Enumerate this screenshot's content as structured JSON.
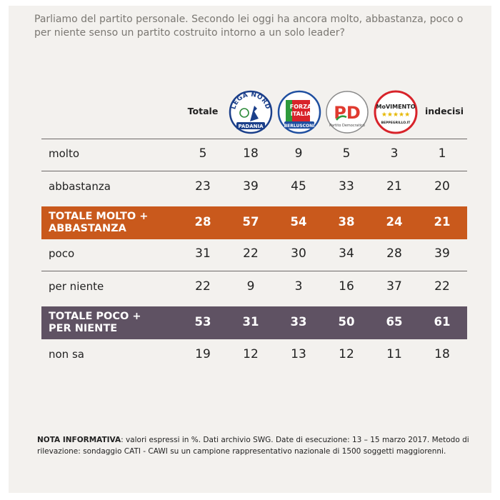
{
  "question": "Parliamo del partito personale. Secondo lei oggi ha ancora molto, abbastanza, poco o per niente senso un partito costruito intorno a un solo leader?",
  "columns": {
    "totale": "Totale",
    "lega": {
      "top": "LEGA NORD",
      "bottom": "PADANIA"
    },
    "forza": {
      "l1": "FORZA",
      "l2": "ITALIA",
      "bottom": "BERLUSCONI"
    },
    "pd": {
      "mark": "PD",
      "bottom": "Partito Democratico"
    },
    "m5s": {
      "l1": "MoVIMENTO",
      "stars": "★★★★★",
      "bottom": "BEPPEGRILLO.IT"
    },
    "indecisi": "indecisi"
  },
  "colors": {
    "highlight_orange": "#c9591c",
    "highlight_purple": "#5f5263",
    "card_bg": "#f3f1ee"
  },
  "chart_data": {
    "type": "table",
    "title": "Parliamo del partito personale. Secondo lei oggi ha ancora molto, abbastanza, poco o per niente senso un partito costruito intorno a un solo leader?",
    "columns": [
      "Totale",
      "Lega Nord",
      "Forza Italia",
      "PD",
      "Movimento 5 Stelle",
      "indecisi"
    ],
    "rows": [
      {
        "label": "molto",
        "values": [
          5,
          18,
          9,
          5,
          3,
          1
        ],
        "highlight": ""
      },
      {
        "label": "abbastanza",
        "values": [
          23,
          39,
          45,
          33,
          21,
          20
        ],
        "highlight": ""
      },
      {
        "label": "TOTALE MOLTO + ABBASTANZA",
        "values": [
          28,
          57,
          54,
          38,
          24,
          21
        ],
        "highlight": "orange"
      },
      {
        "label": "poco",
        "values": [
          31,
          22,
          30,
          34,
          28,
          39
        ],
        "highlight": ""
      },
      {
        "label": "per niente",
        "values": [
          22,
          9,
          3,
          16,
          37,
          22
        ],
        "highlight": ""
      },
      {
        "label": "TOTALE POCO + PER NIENTE",
        "values": [
          53,
          31,
          33,
          50,
          65,
          61
        ],
        "highlight": "purple"
      },
      {
        "label": "non sa",
        "values": [
          19,
          12,
          13,
          12,
          11,
          18
        ],
        "highlight": ""
      }
    ]
  },
  "note": {
    "bold": "NOTA INFORMATIVA",
    "text": ": valori espressi in %. Dati archivio SWG. Date di esecuzione: 13 – 15 marzo 2017. Metodo di rilevazione: sondaggio CATI - CAWI su un campione rappresentativo nazionale di 1500 soggetti maggiorenni."
  }
}
